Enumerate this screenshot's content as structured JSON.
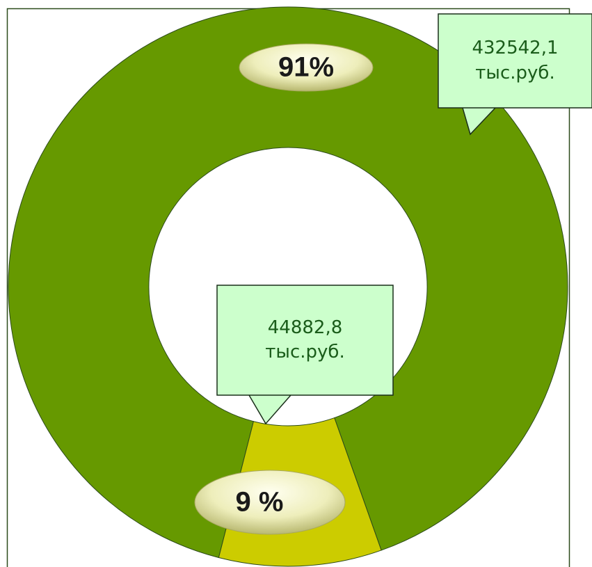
{
  "chart_data": {
    "type": "donut",
    "values": [
      432542.1,
      44882.8
    ],
    "value_labels": [
      "432542,1\nтыс.руб.",
      "44882,8\nтыс.руб."
    ],
    "percents": [
      91,
      9
    ],
    "percent_labels": [
      "91%",
      "9 %"
    ],
    "colors": [
      "#669900",
      "#cccc00"
    ]
  }
}
